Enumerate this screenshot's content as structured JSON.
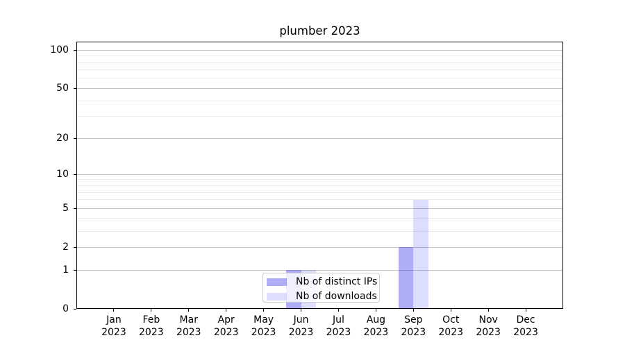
{
  "chart_data": {
    "type": "bar",
    "title": "plumber 2023",
    "categories": [
      "Jan",
      "Feb",
      "Mar",
      "Apr",
      "May",
      "Jun",
      "Jul",
      "Aug",
      "Sep",
      "Oct",
      "Nov",
      "Dec"
    ],
    "category_year": "2023",
    "series": [
      {
        "name": "Nb of distinct IPs",
        "color": "rgba(20,20,235,0.35)",
        "values": [
          0,
          0,
          0,
          0,
          0,
          1,
          0,
          0,
          2,
          0,
          0,
          0
        ]
      },
      {
        "name": "Nb of downloads",
        "color": "rgba(25,25,240,0.15)",
        "values": [
          0,
          0,
          0,
          0,
          0,
          1,
          0,
          0,
          6,
          0,
          0,
          0
        ]
      }
    ],
    "xlabel": "",
    "ylabel": "",
    "yscale": "log1p",
    "ylim": [
      0,
      115
    ],
    "yticks": [
      0,
      1,
      2,
      5,
      10,
      20,
      50,
      100
    ],
    "ytick_labels": [
      "0",
      "1",
      "2",
      "5",
      "10",
      "20",
      "50",
      "100"
    ],
    "yticks_minor": [
      3,
      4,
      6,
      7,
      8,
      9,
      30,
      40,
      60,
      70,
      80,
      90
    ],
    "grid": "horizontal",
    "legend_position": "inside-bottom-center"
  }
}
